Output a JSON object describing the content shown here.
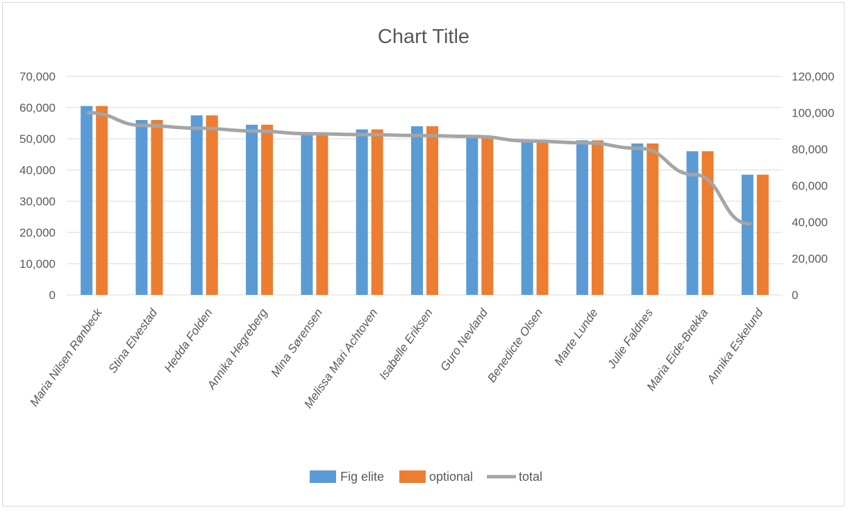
{
  "chart_data": {
    "type": "bar",
    "title": "Chart Title",
    "categories": [
      "Maria Nilsen Rønbeck",
      "Stina Elvestad",
      "Hedda Folden",
      "Annika Hegreberg",
      "Mina Sørensen",
      "Melissa Mari Achtoven",
      "Isabelle Eriksen",
      "Guro Nevland",
      "Benedicte Olsen",
      "Marte Lunde",
      "Julie Faldnes",
      "Maria Eide-Brekka",
      "Annika Eskelund"
    ],
    "series": [
      {
        "name": "Fig elite",
        "type": "bar",
        "axis": "left",
        "color": "#5b9bd5",
        "values": [
          60500,
          56000,
          57500,
          54500,
          52000,
          53000,
          54000,
          51000,
          49500,
          49500,
          48500,
          46000,
          38500
        ]
      },
      {
        "name": "optional",
        "type": "bar",
        "axis": "left",
        "color": "#ed7d31",
        "values": [
          60500,
          56000,
          57500,
          54500,
          52000,
          53000,
          54000,
          51000,
          49500,
          49500,
          48500,
          46000,
          38500
        ]
      },
      {
        "name": "total",
        "type": "line",
        "axis": "right",
        "color": "#a5a5a5",
        "values": [
          100000,
          93000,
          91500,
          90000,
          88500,
          88000,
          87500,
          87000,
          84500,
          83500,
          80500,
          66000,
          39000
        ]
      }
    ],
    "y_left": {
      "lim": [
        0,
        70000
      ],
      "ticks": [
        0,
        10000,
        20000,
        30000,
        40000,
        50000,
        60000,
        70000
      ],
      "tick_labels": [
        "0",
        "10,000",
        "20,000",
        "30,000",
        "40,000",
        "50,000",
        "60,000",
        "70,000"
      ]
    },
    "y_right": {
      "lim": [
        0,
        120000
      ],
      "ticks": [
        0,
        20000,
        40000,
        60000,
        80000,
        100000,
        120000
      ],
      "tick_labels": [
        "0",
        "20,000",
        "40,000",
        "60,000",
        "80,000",
        "100,000",
        "120,000"
      ]
    },
    "grid": true,
    "legend": "bottom",
    "gridline_color": "#d9d9d9",
    "text_color": "#595959"
  }
}
